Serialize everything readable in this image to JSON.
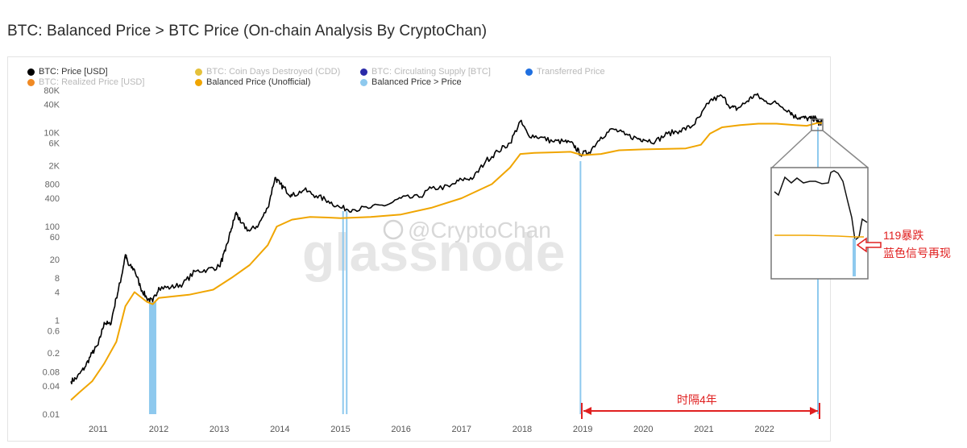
{
  "page": {
    "title": "BTC: Balanced Price > BTC Price (On-chain Analysis By CryptoChan)"
  },
  "legend": [
    {
      "label": "BTC: Price [USD]",
      "color": "#000000",
      "muted": false
    },
    {
      "label": "BTC: Coin Days Destroyed (CDD)",
      "color": "#e5c13a",
      "muted": true
    },
    {
      "label": "BTC: Circulating Supply [BTC]",
      "color": "#2a2aa8",
      "muted": true
    },
    {
      "label": "Transferred Price",
      "color": "#1f6fe0",
      "muted": false
    },
    {
      "label": "BTC: Realized Price [USD]",
      "color": "#f08a24",
      "muted": true
    },
    {
      "label": "Balanced Price (Unofficial)",
      "color": "#f0a500",
      "muted": false
    },
    {
      "label": "Balanced Price > Price",
      "color": "#8ec9ee",
      "muted": false
    }
  ],
  "watermark": {
    "brand": "glassnode",
    "handle": "@CryptoChan"
  },
  "annotations": {
    "interval_label": "时隔4年",
    "callout_line1": "119暴跌",
    "callout_line2": "蓝色信号再现"
  },
  "colors": {
    "price": "#000000",
    "balanced": "#f0a500",
    "signal": "#8ec9ee",
    "annotation": "#e02020"
  },
  "chart_data": {
    "type": "line",
    "title": "BTC: Balanced Price > BTC Price (On-chain Analysis By CryptoChan)",
    "yscale": "log",
    "ylim": [
      0.01,
      80000
    ],
    "xlim": [
      2010.55,
      2022.95
    ],
    "y_ticks": [
      0.01,
      0.04,
      0.08,
      0.2,
      0.6,
      1,
      4,
      8,
      20,
      60,
      100,
      400,
      800,
      2000,
      6000,
      10000,
      40000,
      80000
    ],
    "y_tick_labels": [
      "0.01",
      "0.04",
      "0.08",
      "0.2",
      "0.6",
      "1",
      "4",
      "8",
      "20",
      "60",
      "100",
      "400",
      "800",
      "2K",
      "6K",
      "10K",
      "40K",
      "80K"
    ],
    "x_ticks": [
      2011,
      2012,
      2013,
      2014,
      2015,
      2016,
      2017,
      2018,
      2019,
      2020,
      2021,
      2022
    ],
    "x_tick_labels": [
      "2011",
      "2012",
      "2013",
      "2014",
      "2015",
      "2016",
      "2017",
      "2018",
      "2019",
      "2020",
      "2021",
      "2022"
    ],
    "series": [
      {
        "name": "BTC: Price [USD]",
        "x": [
          2010.55,
          2010.65,
          2010.78,
          2010.9,
          2011.0,
          2011.1,
          2011.2,
          2011.3,
          2011.38,
          2011.45,
          2011.5,
          2011.6,
          2011.7,
          2011.8,
          2011.9,
          2012.0,
          2012.2,
          2012.4,
          2012.6,
          2012.8,
          2013.0,
          2013.1,
          2013.2,
          2013.28,
          2013.35,
          2013.5,
          2013.65,
          2013.8,
          2013.92,
          2014.0,
          2014.1,
          2014.2,
          2014.4,
          2014.6,
          2014.8,
          2015.0,
          2015.2,
          2015.5,
          2015.8,
          2016.0,
          2016.3,
          2016.5,
          2016.8,
          2017.0,
          2017.2,
          2017.4,
          2017.6,
          2017.8,
          2017.97,
          2018.1,
          2018.3,
          2018.5,
          2018.7,
          2018.85,
          2018.96,
          2019.1,
          2019.3,
          2019.5,
          2019.7,
          2019.9,
          2020.0,
          2020.2,
          2020.4,
          2020.6,
          2020.8,
          2020.95,
          2021.1,
          2021.3,
          2021.45,
          2021.55,
          2021.7,
          2021.85,
          2022.0,
          2022.2,
          2022.4,
          2022.5,
          2022.6,
          2022.7,
          2022.8,
          2022.85,
          2022.88,
          2022.92,
          2022.95
        ],
        "y": [
          0.05,
          0.06,
          0.1,
          0.2,
          0.3,
          0.9,
          0.8,
          3,
          8,
          25,
          15,
          12,
          5,
          3,
          2.5,
          5,
          5,
          6,
          11,
          12,
          14,
          30,
          90,
          200,
          120,
          80,
          110,
          250,
          1100,
          800,
          600,
          450,
          600,
          450,
          350,
          250,
          230,
          250,
          300,
          400,
          420,
          650,
          700,
          1000,
          1100,
          2500,
          4000,
          6000,
          17500,
          9000,
          8000,
          6500,
          6500,
          5500,
          3500,
          3800,
          8000,
          12000,
          9000,
          7500,
          7200,
          6500,
          9500,
          11000,
          13500,
          23000,
          48000,
          60000,
          35000,
          32000,
          45000,
          65000,
          47000,
          42000,
          30000,
          22000,
          21000,
          20000,
          19500,
          20500,
          16500,
          16000,
          17000
        ]
      },
      {
        "name": "Balanced Price (Unofficial)",
        "x": [
          2010.55,
          2010.7,
          2010.9,
          2011.1,
          2011.3,
          2011.45,
          2011.6,
          2011.8,
          2011.9,
          2012.0,
          2012.5,
          2012.9,
          2013.2,
          2013.5,
          2013.8,
          2013.95,
          2014.2,
          2014.5,
          2014.8,
          2015.0,
          2015.5,
          2016.0,
          2016.5,
          2017.0,
          2017.5,
          2017.8,
          2017.97,
          2018.2,
          2018.5,
          2018.8,
          2019.0,
          2019.3,
          2019.6,
          2020.0,
          2020.4,
          2020.7,
          2020.95,
          2021.1,
          2021.3,
          2021.6,
          2021.9,
          2022.2,
          2022.5,
          2022.7,
          2022.87,
          2022.95
        ],
        "y": [
          0.02,
          0.03,
          0.05,
          0.12,
          0.35,
          2,
          4,
          2.5,
          2.2,
          3,
          3.5,
          4.5,
          8,
          15,
          40,
          100,
          140,
          160,
          155,
          150,
          160,
          180,
          250,
          400,
          800,
          1800,
          3500,
          3700,
          3800,
          3900,
          3300,
          3500,
          4200,
          4400,
          4500,
          4600,
          5500,
          9500,
          13000,
          14500,
          15500,
          15500,
          14500,
          14000,
          16000,
          16000
        ]
      }
    ],
    "signal_periods": [
      [
        2011.84,
        2011.96
      ],
      [
        2015.03,
        2015.05
      ],
      [
        2015.09,
        2015.11
      ],
      [
        2018.95,
        2018.97
      ],
      [
        2022.87,
        2022.88
      ]
    ]
  }
}
